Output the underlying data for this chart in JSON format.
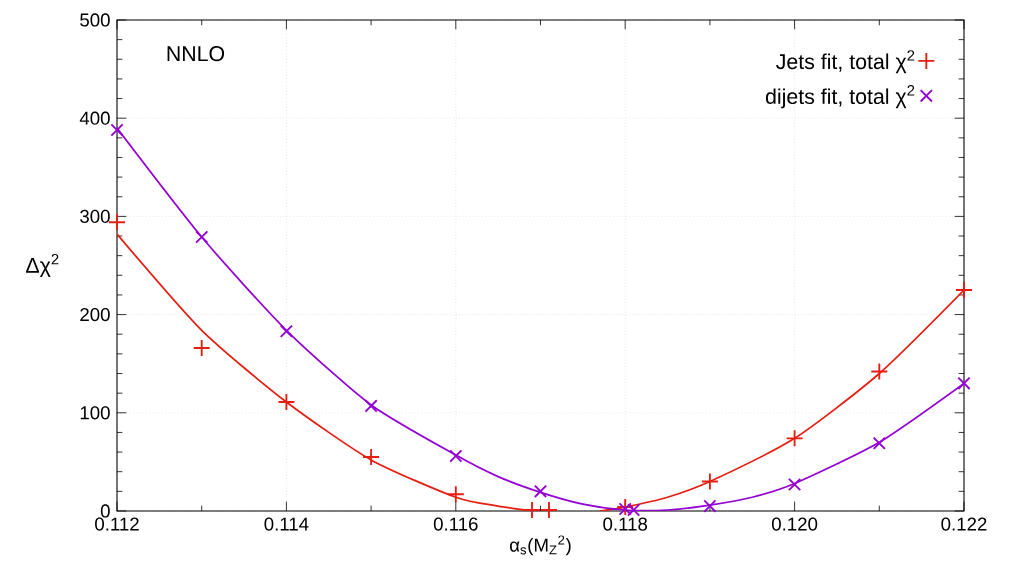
{
  "chart_data": {
    "type": "scatter",
    "xlabel": "α$_{s}$(M$_{Z}$$^{2}$)",
    "ylabel": "Δχ$^{2}$",
    "annotations": [
      "NNLO"
    ],
    "xlim": [
      0.112,
      0.122
    ],
    "ylim": [
      0,
      500
    ],
    "xticks": [
      0.112,
      0.114,
      0.116,
      0.118,
      {
        "value": 0.12,
        "label": "0.120"
      },
      0.122
    ],
    "yticks": [
      0,
      100,
      200,
      300,
      400,
      500
    ],
    "grid": true,
    "legend": "top right",
    "series": [
      {
        "name": "Jets fit, total χ$^{2}$",
        "marker": "plus",
        "color": "#e51e10",
        "x": [
          0.112,
          0.113,
          0.114,
          0.115,
          0.116,
          0.1169,
          0.1171,
          0.118,
          0.119,
          0.12,
          0.121,
          0.122
        ],
        "values": [
          294,
          166,
          111,
          55,
          17,
          1,
          1,
          4,
          30,
          74,
          142,
          225
        ]
      },
      {
        "name": "dijets fit, total χ$^{2}$",
        "marker": "cross",
        "color": "#9400d3",
        "x": [
          0.112,
          0.113,
          0.114,
          0.115,
          0.116,
          0.117,
          0.118,
          0.1181,
          0.119,
          0.12,
          0.121,
          0.122
        ],
        "values": [
          388,
          279,
          183,
          107,
          56,
          20,
          2,
          1,
          5,
          27,
          69,
          130
        ]
      },
      {
        "type": "line",
        "marker": "none",
        "color": "#e51e10",
        "x": [
          0.112,
          0.113,
          0.114,
          0.115,
          0.116,
          0.1165,
          0.1169,
          0.1173,
          0.1177,
          0.118,
          0.1185,
          0.119,
          0.12,
          0.121,
          0.122
        ],
        "values": [
          282,
          184,
          111,
          52,
          14,
          5,
          0,
          null,
          0,
          4,
          14,
          30,
          74,
          140,
          225
        ]
      },
      {
        "type": "line",
        "marker": "none",
        "color": "#9400d3",
        "x": [
          0.112,
          0.113,
          0.114,
          0.115,
          0.116,
          0.1165,
          0.117,
          0.1175,
          0.118,
          0.1185,
          0.119,
          0.1195,
          0.12,
          0.121,
          0.122
        ],
        "values": [
          390,
          279,
          184,
          108,
          57,
          35,
          19,
          7,
          1,
          1,
          6,
          14,
          28,
          70,
          130
        ]
      }
    ]
  }
}
